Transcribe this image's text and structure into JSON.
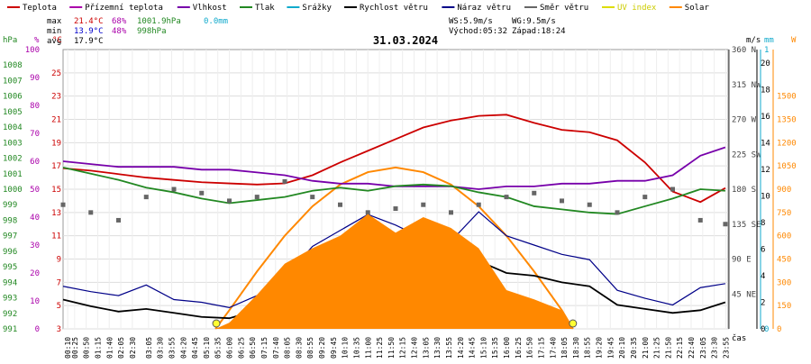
{
  "legend": [
    {
      "label": "Teplota",
      "color": "#cc0000"
    },
    {
      "label": "Přízemní teplota",
      "color": "#aa00aa"
    },
    {
      "label": "Vlhkost",
      "color": "#7700aa"
    },
    {
      "label": "Tlak",
      "color": "#228822"
    },
    {
      "label": "Srážky",
      "color": "#11aacc"
    },
    {
      "label": "Rychlost větru",
      "color": "#000000"
    },
    {
      "label": "Náraz větru",
      "color": "#000088"
    },
    {
      "label": "Směr větru",
      "color": "#666666"
    },
    {
      "label": "UV index",
      "color": "#dddd00"
    },
    {
      "label": "Solar",
      "color": "#ff8800"
    }
  ],
  "stats": {
    "max_label": "max",
    "max_temp": "21.4°C",
    "max_hum": "68%",
    "max_press": "1001.9hPa",
    "max_rain": "0.0mm",
    "min_label": "min",
    "min_temp": "13.9°C",
    "min_hum": "48%",
    "min_press": "998hPa",
    "avg_label": "avg",
    "avg_temp": "17.9°C",
    "ws": "WS:5.9m/s",
    "wg": "WG:9.5m/s",
    "sunrise": "Východ:05:32",
    "sunset": "Západ:18:24"
  },
  "chart_data": {
    "type": "line",
    "title": "31.03.2024",
    "xlabel": "čas",
    "x_ticks": [
      "00:10",
      "00:25",
      "00:50",
      "01:15",
      "01:40",
      "02:05",
      "02:30",
      "03:05",
      "03:30",
      "03:55",
      "04:20",
      "04:45",
      "05:10",
      "05:35",
      "06:00",
      "06:25",
      "06:50",
      "07:15",
      "07:40",
      "08:05",
      "08:30",
      "08:55",
      "09:20",
      "09:45",
      "10:10",
      "10:35",
      "11:00",
      "11:25",
      "11:50",
      "12:15",
      "12:40",
      "13:05",
      "13:30",
      "13:55",
      "14:20",
      "14:45",
      "15:10",
      "15:35",
      "16:00",
      "16:25",
      "16:50",
      "17:15",
      "17:40",
      "18:05",
      "18:30",
      "18:55",
      "19:20",
      "19:45",
      "20:10",
      "20:35",
      "21:00",
      "21:25",
      "21:50",
      "22:15",
      "22:40",
      "23:05",
      "23:30",
      "23:55"
    ],
    "axes": {
      "pressure": {
        "unit": "hPa",
        "color": "#228822",
        "ticks": [
          "991",
          "992",
          "993",
          "994",
          "995",
          "996",
          "997",
          "998",
          "999",
          "1000",
          "1001",
          "1002",
          "1003",
          "1004",
          "1005",
          "1006",
          "1007",
          "1008"
        ],
        "range": [
          991,
          1009
        ]
      },
      "humidity": {
        "unit": "%",
        "color": "#aa00aa",
        "ticks": [
          "0",
          "10",
          "20",
          "30",
          "40",
          "50",
          "60",
          "70",
          "80",
          "90",
          "100"
        ],
        "range": [
          0,
          100
        ]
      },
      "temperature": {
        "unit": "°C",
        "color": "#cc0000",
        "ticks": [
          "3",
          "5",
          "7",
          "9",
          "11",
          "13",
          "15",
          "17",
          "19",
          "21",
          "23",
          "25"
        ],
        "range": [
          3,
          27
        ]
      },
      "direction": {
        "unit": "",
        "color": "#444444",
        "ticks": [
          "45 NE",
          "90 E",
          "135 SE",
          "180 S",
          "225 SW",
          "270 W",
          "315 NW",
          "360 N"
        ],
        "range": [
          0,
          360
        ]
      },
      "wind": {
        "unit": "m/s",
        "color": "#000000",
        "ticks": [
          "0",
          "2",
          "4",
          "6",
          "8",
          "10",
          "12",
          "14",
          "16",
          "18",
          "20"
        ],
        "range": [
          0,
          21
        ]
      },
      "rain": {
        "unit": "mm",
        "color": "#11aacc",
        "ticks": [
          "0",
          "1"
        ],
        "range": [
          0,
          1
        ]
      },
      "solar": {
        "unit": "W",
        "color": "#ff8800",
        "ticks": [
          "0",
          "150",
          "300",
          "450",
          "600",
          "750",
          "900",
          "1050",
          "1200",
          "1350",
          "1500"
        ],
        "range": [
          0,
          1800
        ]
      }
    },
    "series": [
      {
        "name": "Teplota",
        "unit": "°C",
        "color": "#cc0000",
        "x": [
          0,
          1,
          2,
          3,
          4,
          5,
          6,
          7,
          8,
          9,
          10,
          11,
          12,
          13,
          14,
          15,
          16,
          17,
          18,
          19,
          20,
          21,
          22,
          23,
          23.9
        ],
        "y": [
          16.8,
          16.6,
          16.3,
          16.0,
          15.8,
          15.6,
          15.5,
          15.4,
          15.5,
          16.2,
          17.3,
          18.3,
          19.3,
          20.3,
          20.9,
          21.3,
          21.4,
          20.7,
          20.1,
          19.9,
          19.2,
          17.3,
          14.8,
          13.9,
          15.1
        ]
      },
      {
        "name": "Vlhkost",
        "unit": "%",
        "color": "#7700aa",
        "x": [
          0,
          1,
          2,
          3,
          4,
          5,
          6,
          7,
          8,
          9,
          10,
          11,
          12,
          13,
          14,
          15,
          16,
          17,
          18,
          19,
          20,
          21,
          22,
          23,
          23.9
        ],
        "y": [
          60,
          59,
          58,
          58,
          58,
          57,
          57,
          56,
          55,
          53,
          52,
          52,
          51,
          51,
          51,
          50,
          51,
          51,
          52,
          52,
          53,
          53,
          55,
          62,
          65
        ]
      },
      {
        "name": "Tlak",
        "unit": "hPa",
        "color": "#228822",
        "x": [
          0,
          1,
          2,
          3,
          4,
          5,
          6,
          7,
          8,
          9,
          10,
          11,
          12,
          13,
          14,
          15,
          16,
          17,
          18,
          19,
          20,
          21,
          22,
          23,
          23.9
        ],
        "y": [
          1001.4,
          1001.0,
          1000.6,
          1000.1,
          999.8,
          999.4,
          999.1,
          999.3,
          999.5,
          999.9,
          1000.1,
          999.9,
          1000.2,
          1000.3,
          1000.2,
          999.8,
          999.5,
          998.9,
          998.7,
          998.5,
          998.4,
          998.9,
          999.4,
          1000.0,
          999.9
        ]
      },
      {
        "name": "Rychlost větru",
        "unit": "m/s",
        "color": "#000000",
        "x": [
          0,
          1,
          2,
          3,
          4,
          5,
          6,
          7,
          8,
          9,
          10,
          11,
          12,
          13,
          14,
          15,
          16,
          17,
          18,
          19,
          20,
          21,
          22,
          23,
          23.9
        ],
        "y": [
          2.2,
          1.7,
          1.3,
          1.5,
          1.2,
          0.9,
          0.8,
          1.4,
          2.0,
          3.5,
          4.0,
          5.0,
          4.6,
          4.2,
          3.8,
          5.1,
          4.2,
          4.0,
          3.5,
          3.2,
          1.8,
          1.5,
          1.2,
          1.4,
          2.0
        ]
      },
      {
        "name": "Náraz větru",
        "unit": "m/s",
        "color": "#000088",
        "x": [
          0,
          1,
          2,
          3,
          4,
          5,
          6,
          7,
          8,
          9,
          10,
          11,
          12,
          13,
          14,
          15,
          16,
          17,
          18,
          19,
          20,
          21,
          22,
          23,
          23.9
        ],
        "y": [
          3.2,
          2.8,
          2.5,
          3.3,
          2.2,
          2.0,
          1.6,
          2.5,
          3.8,
          6.2,
          7.4,
          8.6,
          7.8,
          6.8,
          6.6,
          8.8,
          7.0,
          6.3,
          5.6,
          5.2,
          2.9,
          2.3,
          1.8,
          3.1,
          3.4
        ]
      },
      {
        "name": "Směr větru",
        "unit": "°",
        "color": "#666666",
        "x": [
          0,
          1,
          2,
          3,
          4,
          5,
          6,
          7,
          8,
          9,
          10,
          11,
          12,
          13,
          14,
          15,
          16,
          17,
          18,
          19,
          20,
          21,
          22,
          23,
          23.9
        ],
        "y": [
          160,
          150,
          140,
          170,
          180,
          175,
          165,
          170,
          190,
          170,
          160,
          150,
          155,
          160,
          150,
          160,
          170,
          175,
          165,
          160,
          150,
          170,
          180,
          140,
          135
        ]
      },
      {
        "name": "Solar",
        "unit": "W",
        "color": "#ff8800",
        "x": [
          5.5,
          6,
          7,
          8,
          9,
          10,
          11,
          12,
          13,
          14,
          15,
          16,
          17,
          18,
          18.4
        ],
        "y": [
          0,
          40,
          220,
          420,
          520,
          600,
          740,
          620,
          720,
          650,
          520,
          250,
          190,
          120,
          0
        ]
      }
    ],
    "solar_clear_sky": {
      "x": [
        5.5,
        6,
        7,
        8,
        9,
        10,
        11,
        12,
        13,
        14,
        15,
        16,
        17,
        18,
        18.4
      ],
      "y": [
        0,
        120,
        370,
        600,
        790,
        930,
        1010,
        1040,
        1010,
        930,
        790,
        600,
        370,
        120,
        0
      ]
    },
    "sun_markers": {
      "sunrise_hour": 5.53,
      "sunset_hour": 18.4
    },
    "grid": true
  }
}
